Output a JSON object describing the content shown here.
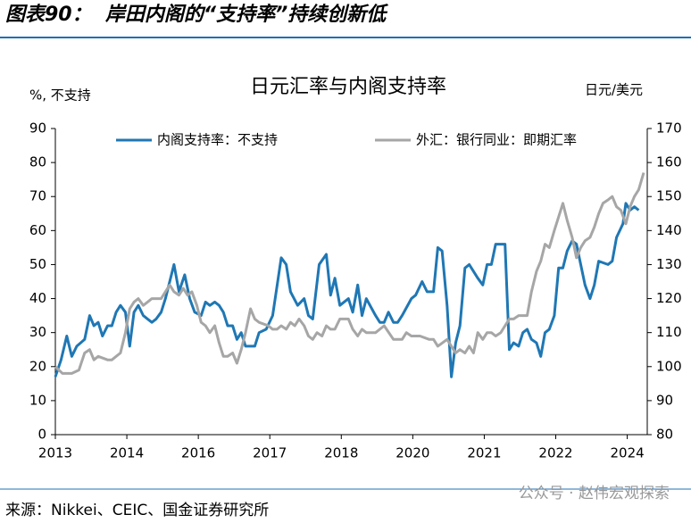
{
  "header": {
    "title": "图表90：  岸田内阁的“支持率”持续创新低"
  },
  "chart_data": {
    "type": "line",
    "title": "日元汇率与内阁支持率",
    "y_label": "%, 不支持",
    "y2_label": "日元/美元",
    "xlim": [
      0,
      8.28
    ],
    "xticks": [
      {
        "value": 0,
        "label": "2013"
      },
      {
        "value": 1,
        "label": "2014"
      },
      {
        "value": 2,
        "label": "2016"
      },
      {
        "value": 3,
        "label": "2017"
      },
      {
        "value": 4,
        "label": "2018"
      },
      {
        "value": 5,
        "label": "2020"
      },
      {
        "value": 6,
        "label": "2021"
      },
      {
        "value": 7,
        "label": "2022"
      },
      {
        "value": 8,
        "label": "2024"
      }
    ],
    "ylim": [
      0,
      90
    ],
    "yticks": [
      0,
      10,
      20,
      30,
      40,
      50,
      60,
      70,
      80,
      90
    ],
    "y2lim": [
      80,
      170
    ],
    "y2ticks": [
      80,
      90,
      100,
      110,
      120,
      130,
      140,
      150,
      160,
      170
    ],
    "legend": "top",
    "series": [
      {
        "name": "内阁支持率：不支持",
        "color": "#1f77b4",
        "x": [
          0,
          0.08,
          0.16,
          0.23,
          0.3,
          0.41,
          0.48,
          0.54,
          0.6,
          0.66,
          0.73,
          0.79,
          0.85,
          0.91,
          0.98,
          1.04,
          1.1,
          1.16,
          1.23,
          1.29,
          1.35,
          1.41,
          1.48,
          1.54,
          1.66,
          1.73,
          1.81,
          1.88,
          1.95,
          2.04,
          2.1,
          2.16,
          2.23,
          2.29,
          2.35,
          2.41,
          2.48,
          2.54,
          2.6,
          2.66,
          2.79,
          2.85,
          2.95,
          3.04,
          3.16,
          3.23,
          3.29,
          3.39,
          3.48,
          3.54,
          3.6,
          3.69,
          3.79,
          3.85,
          3.91,
          3.98,
          4.1,
          4.16,
          4.23,
          4.29,
          4.35,
          4.48,
          4.54,
          4.6,
          4.66,
          4.73,
          4.79,
          4.85,
          4.98,
          5.04,
          5.13,
          5.2,
          5.29,
          5.35,
          5.41,
          5.48,
          5.54,
          5.6,
          5.66,
          5.73,
          5.79,
          5.91,
          5.98,
          6.04,
          6.1,
          6.16,
          6.29,
          6.35,
          6.41,
          6.48,
          6.54,
          6.6,
          6.66,
          6.73,
          6.79,
          6.85,
          6.91,
          6.98,
          7.04,
          7.1,
          7.16,
          7.23,
          7.29,
          7.35,
          7.41,
          7.48,
          7.54,
          7.6,
          7.73,
          7.79,
          7.85,
          7.94,
          7.98,
          8.04,
          8.1,
          8.16
        ],
        "values": [
          17,
          22,
          29,
          23,
          26,
          28,
          35,
          32,
          33,
          29,
          32,
          32,
          36,
          38,
          36,
          26,
          36,
          38,
          35,
          34,
          33,
          34,
          36,
          40,
          50,
          42,
          47,
          40,
          36,
          35,
          39,
          38,
          39,
          38,
          36,
          32,
          32,
          28,
          30,
          26,
          26,
          30,
          31,
          35,
          52,
          50,
          42,
          38,
          40,
          35,
          34,
          50,
          53,
          41,
          46,
          38,
          40,
          36,
          44,
          35,
          40,
          35,
          33,
          33,
          36,
          33,
          33,
          35,
          40,
          41,
          45,
          42,
          42,
          55,
          54,
          38,
          17,
          27,
          32,
          49,
          50,
          46,
          44,
          50,
          50,
          56,
          56,
          25,
          27,
          26,
          30,
          31,
          28,
          27,
          23,
          30,
          31,
          35,
          49,
          49,
          54,
          57,
          56,
          50,
          44,
          40,
          44,
          51,
          50,
          51,
          58,
          62,
          68,
          66,
          67,
          66
        ]
      },
      {
        "name": "外汇：银行同业：即期汇率",
        "color": "#a6a6a6",
        "axis": "y2",
        "x": [
          0,
          0.1,
          0.23,
          0.33,
          0.41,
          0.48,
          0.54,
          0.6,
          0.73,
          0.79,
          0.85,
          0.91,
          0.98,
          1.04,
          1.1,
          1.16,
          1.23,
          1.29,
          1.35,
          1.48,
          1.54,
          1.6,
          1.66,
          1.73,
          1.79,
          1.85,
          1.91,
          1.98,
          2.04,
          2.1,
          2.16,
          2.23,
          2.29,
          2.35,
          2.41,
          2.48,
          2.54,
          2.6,
          2.66,
          2.73,
          2.79,
          2.85,
          2.98,
          3.04,
          3.1,
          3.16,
          3.23,
          3.29,
          3.35,
          3.41,
          3.48,
          3.54,
          3.6,
          3.66,
          3.73,
          3.79,
          3.85,
          3.91,
          3.98,
          4.1,
          4.16,
          4.23,
          4.29,
          4.35,
          4.48,
          4.6,
          4.73,
          4.85,
          4.91,
          4.98,
          5.1,
          5.23,
          5.29,
          5.35,
          5.48,
          5.54,
          5.6,
          5.66,
          5.73,
          5.79,
          5.85,
          5.91,
          5.98,
          6.04,
          6.1,
          6.16,
          6.23,
          6.29,
          6.35,
          6.41,
          6.48,
          6.54,
          6.6,
          6.66,
          6.73,
          6.79,
          6.85,
          6.91,
          6.98,
          7.04,
          7.1,
          7.16,
          7.23,
          7.29,
          7.35,
          7.41,
          7.48,
          7.54,
          7.6,
          7.66,
          7.73,
          7.79,
          7.85,
          7.91,
          7.98,
          8.04,
          8.1,
          8.16,
          8.23
        ],
        "values": [
          100,
          98,
          98,
          99,
          104,
          105,
          102,
          103,
          102,
          102,
          103,
          104,
          110,
          117,
          119,
          120,
          118,
          119,
          120,
          120,
          122,
          124,
          122,
          121,
          123,
          121,
          122,
          118,
          113,
          112,
          110,
          112,
          107,
          103,
          103,
          104,
          101,
          105,
          110,
          117,
          114,
          113,
          112,
          111,
          111,
          112,
          111,
          113,
          112,
          114,
          112,
          109,
          108,
          110,
          109,
          112,
          111,
          111,
          114,
          114,
          111,
          109,
          111,
          110,
          110,
          112,
          108,
          108,
          110,
          109,
          109,
          108,
          108,
          106,
          108,
          106,
          104,
          105,
          104,
          106,
          104,
          110,
          108,
          110,
          110,
          109,
          110,
          112,
          114,
          114,
          115,
          115,
          115,
          122,
          128,
          131,
          136,
          135,
          140,
          144,
          148,
          143,
          138,
          132,
          135,
          137,
          138,
          141,
          145,
          148,
          149,
          150,
          147,
          146,
          142,
          147,
          150,
          152,
          157
        ]
      }
    ]
  },
  "footer": {
    "source": "来源：Nikkei、CEIC、国金证券研究所",
    "watermark": "公众号 · 赵伟宏观探索"
  }
}
